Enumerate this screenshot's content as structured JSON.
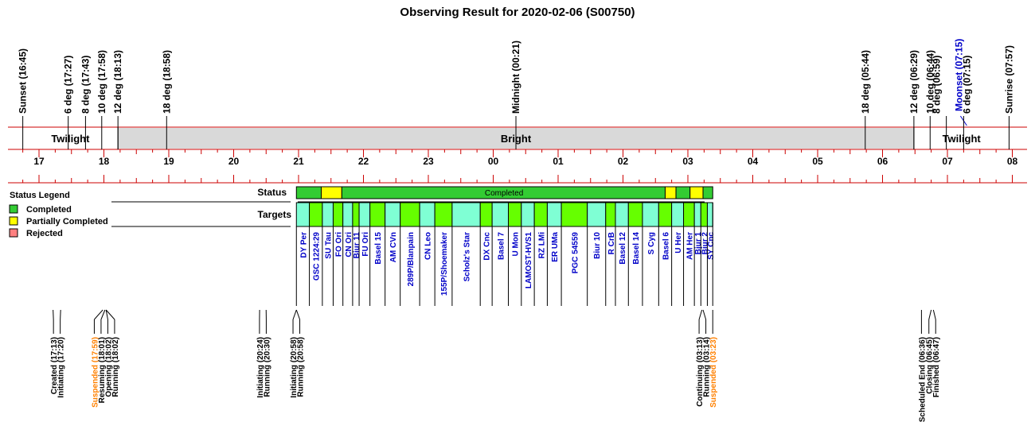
{
  "title": "Observing Result for 2020-02-06 (S00750)",
  "chart_data": {
    "type": "timeline",
    "time_axis": {
      "start": "16:30",
      "end": "08:05",
      "tick_labels": [
        "17",
        "18",
        "19",
        "20",
        "21",
        "22",
        "23",
        "00",
        "01",
        "02",
        "03",
        "04",
        "05",
        "06",
        "07",
        "08"
      ]
    },
    "events": [
      {
        "label": "Sunset (16:45)",
        "time": "16:45",
        "type": "sun"
      },
      {
        "label": "6 deg (17:27)",
        "time": "17:27",
        "type": "sun"
      },
      {
        "label": "8 deg (17:43)",
        "time": "17:43",
        "type": "sun"
      },
      {
        "label": "10 deg (17:58)",
        "time": "17:58",
        "type": "sun"
      },
      {
        "label": "12 deg (18:13)",
        "time": "18:13",
        "type": "sun"
      },
      {
        "label": "18 deg (18:58)",
        "time": "18:58",
        "type": "sun"
      },
      {
        "label": "Midnight (00:21)",
        "time": "00:21",
        "type": "sun"
      },
      {
        "label": "18 deg (05:44)",
        "time": "05:44",
        "type": "sun"
      },
      {
        "label": "12 deg (06:29)",
        "time": "06:29",
        "type": "sun"
      },
      {
        "label": "10 deg (06:44)",
        "time": "06:44",
        "type": "sun"
      },
      {
        "label": "8 deg (06:59)",
        "time": "06:59",
        "type": "sun"
      },
      {
        "label": "Moonset (07:15)",
        "time": "07:15",
        "type": "moon"
      },
      {
        "label": "6 deg (07:15)",
        "time": "07:15",
        "type": "sun"
      },
      {
        "label": "Sunrise (07:57)",
        "time": "07:57",
        "type": "sun"
      }
    ],
    "sky_bands": [
      {
        "label": "Twilight",
        "start": "16:45",
        "end": "18:13",
        "color": "#ffffff"
      },
      {
        "label": "Bright",
        "start": "18:13",
        "end": "06:29",
        "color": "#d9d9d9"
      },
      {
        "label": "Twilight",
        "start": "06:29",
        "end": "07:57",
        "color": "#ffffff"
      }
    ],
    "status_segments": [
      {
        "start": "20:58",
        "end": "21:21",
        "status": "Completed",
        "color": "#33cc33"
      },
      {
        "start": "21:21",
        "end": "21:40",
        "status": "Partially Completed",
        "color": "#ffff00"
      },
      {
        "start": "21:40",
        "end": "02:39",
        "status": "Completed",
        "color": "#33cc33"
      },
      {
        "start": "02:39",
        "end": "02:49",
        "status": "Partially Completed",
        "color": "#ffff00"
      },
      {
        "start": "02:49",
        "end": "03:02",
        "status": "Completed",
        "color": "#33cc33"
      },
      {
        "start": "03:02",
        "end": "03:14",
        "status": "Partially Completed",
        "color": "#ffff00"
      },
      {
        "start": "03:14",
        "end": "03:23",
        "status": "Completed",
        "color": "#33cc33"
      }
    ],
    "status_text": "Completed",
    "targets": [
      {
        "name": "DY Per",
        "start": "20:58",
        "end": "21:10",
        "color": "#7fffd4"
      },
      {
        "name": "GSC 1224:29",
        "start": "21:10",
        "end": "21:22",
        "color": "#66ff00"
      },
      {
        "name": "SU Tau",
        "start": "21:22",
        "end": "21:32",
        "color": "#7fffd4"
      },
      {
        "name": "FO Ori",
        "start": "21:32",
        "end": "21:41",
        "color": "#66ff00"
      },
      {
        "name": "CN Ori",
        "start": "21:41",
        "end": "21:50",
        "color": "#7fffd4"
      },
      {
        "name": "Biur 11",
        "start": "21:50",
        "end": "21:56",
        "color": "#66ff00"
      },
      {
        "name": "FU Ori",
        "start": "21:56",
        "end": "22:06",
        "color": "#7fffd4"
      },
      {
        "name": "Basel 15",
        "start": "22:06",
        "end": "22:20",
        "color": "#66ff00"
      },
      {
        "name": "AM CVn",
        "start": "22:20",
        "end": "22:34",
        "color": "#7fffd4"
      },
      {
        "name": "289P/Blanpain",
        "start": "22:34",
        "end": "22:52",
        "color": "#66ff00"
      },
      {
        "name": "CN Leo",
        "start": "22:52",
        "end": "23:06",
        "color": "#7fffd4"
      },
      {
        "name": "155P/Shoemaker",
        "start": "23:06",
        "end": "23:22",
        "color": "#66ff00"
      },
      {
        "name": "Scholz's Star",
        "start": "23:22",
        "end": "23:48",
        "color": "#7fffd4"
      },
      {
        "name": "DX Cnc",
        "start": "23:48",
        "end": "23:59",
        "color": "#66ff00"
      },
      {
        "name": "Basel 7",
        "start": "23:59",
        "end": "00:14",
        "color": "#7fffd4"
      },
      {
        "name": "U Mon",
        "start": "00:14",
        "end": "00:26",
        "color": "#66ff00"
      },
      {
        "name": "LAMOST-HVS1",
        "start": "00:26",
        "end": "00:38",
        "color": "#7fffd4"
      },
      {
        "name": "RZ LMi",
        "start": "00:38",
        "end": "00:50",
        "color": "#66ff00"
      },
      {
        "name": "ER UMa",
        "start": "00:50",
        "end": "01:03",
        "color": "#7fffd4"
      },
      {
        "name": "PGC 54559",
        "start": "01:03",
        "end": "01:27",
        "color": "#66ff00"
      },
      {
        "name": "Biur 10",
        "start": "01:27",
        "end": "01:44",
        "color": "#7fffd4"
      },
      {
        "name": "R CrB",
        "start": "01:44",
        "end": "01:53",
        "color": "#66ff00"
      },
      {
        "name": "Basel 12",
        "start": "01:53",
        "end": "02:05",
        "color": "#7fffd4"
      },
      {
        "name": "Basel 14",
        "start": "02:05",
        "end": "02:18",
        "color": "#66ff00"
      },
      {
        "name": "S Cyg",
        "start": "02:18",
        "end": "02:33",
        "color": "#7fffd4"
      },
      {
        "name": "Basel 6",
        "start": "02:33",
        "end": "02:45",
        "color": "#66ff00"
      },
      {
        "name": "U Her",
        "start": "02:45",
        "end": "02:56",
        "color": "#7fffd4"
      },
      {
        "name": "AM Her",
        "start": "02:56",
        "end": "03:06",
        "color": "#66ff00"
      },
      {
        "name": "Biur 1",
        "start": "03:06",
        "end": "03:12",
        "color": "#7fffd4"
      },
      {
        "name": "Biur 2",
        "start": "03:12",
        "end": "03:18",
        "color": "#66ff00"
      },
      {
        "name": "SY Cnc",
        "start": "03:18",
        "end": "03:23",
        "color": "#7fffd4"
      }
    ],
    "log_events": [
      {
        "label": "Created (17:13)",
        "time": "17:13",
        "suspended": false
      },
      {
        "label": "Initiating (17:20)",
        "time": "17:20",
        "suspended": false
      },
      {
        "label": "Suspended (17:59)",
        "time": "17:59",
        "suspended": true
      },
      {
        "label": "Resuming (18:01)",
        "time": "18:01",
        "suspended": false
      },
      {
        "label": "Opening (18:02)",
        "time": "18:02",
        "suspended": false
      },
      {
        "label": "Running (18:02)",
        "time": "18:02",
        "suspended": false
      },
      {
        "label": "Initiating (20:24)",
        "time": "20:24",
        "suspended": false
      },
      {
        "label": "Running (20:30)",
        "time": "20:30",
        "suspended": false
      },
      {
        "label": "Initiating (20:58)",
        "time": "20:58",
        "suspended": false
      },
      {
        "label": "Running (20:58)",
        "time": "20:58",
        "suspended": false
      },
      {
        "label": "Continuing (03:13)",
        "time": "03:13",
        "suspended": false
      },
      {
        "label": "Running (03:14)",
        "time": "03:14",
        "suspended": false
      },
      {
        "label": "Suspended (03:23)",
        "time": "03:23",
        "suspended": true
      },
      {
        "label": "Scheduled End (06:36)",
        "time": "06:36",
        "suspended": false
      },
      {
        "label": "Closing (06:45)",
        "time": "06:45",
        "suspended": false
      },
      {
        "label": "Finished (06:47)",
        "time": "06:47",
        "suspended": false
      }
    ]
  },
  "rows": {
    "status_label": "Status",
    "targets_label": "Targets"
  },
  "legend": {
    "title": "Status Legend",
    "items": [
      {
        "label": "Completed",
        "color": "#33cc33"
      },
      {
        "label": "Partially Completed",
        "color": "#ffff00"
      },
      {
        "label": "Rejected",
        "color": "#ff8080"
      }
    ]
  },
  "colors": {
    "axis_red": "#cc0000",
    "moon_blue": "#0000c8",
    "suspended_orange": "#ff8000"
  }
}
